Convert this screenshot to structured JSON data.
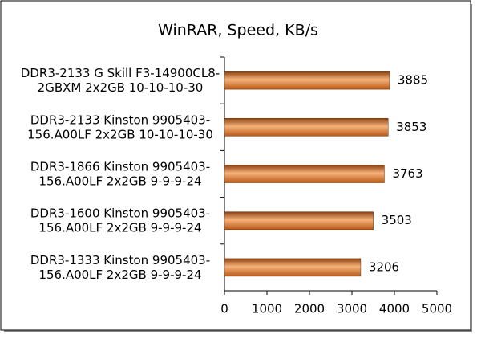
{
  "chart_data": {
    "type": "hbar",
    "title": "WinRAR, Speed, KB/s",
    "categories": [
      "DDR3-2133 G Skill F3-14900CL8-\n2GBXM 2x2GB 10-10-10-30",
      "DDR3-2133 Kinston 9905403-\n156.A00LF 2x2GB 10-10-10-30",
      "DDR3-1866 Kinston 9905403-\n156.A00LF 2x2GB 9-9-9-24",
      "DDR3-1600 Kinston 9905403-\n156.A00LF 2x2GB 9-9-9-24",
      "DDR3-1333 Kinston 9905403-\n156.A00LF 2x2GB 9-9-9-24"
    ],
    "values": [
      3885,
      3853,
      3763,
      3503,
      3206
    ],
    "color": "#e07a2a",
    "xlim": [
      0,
      5000
    ],
    "xticks": [
      0,
      1000,
      2000,
      3000,
      4000,
      5000
    ],
    "grid": false
  }
}
